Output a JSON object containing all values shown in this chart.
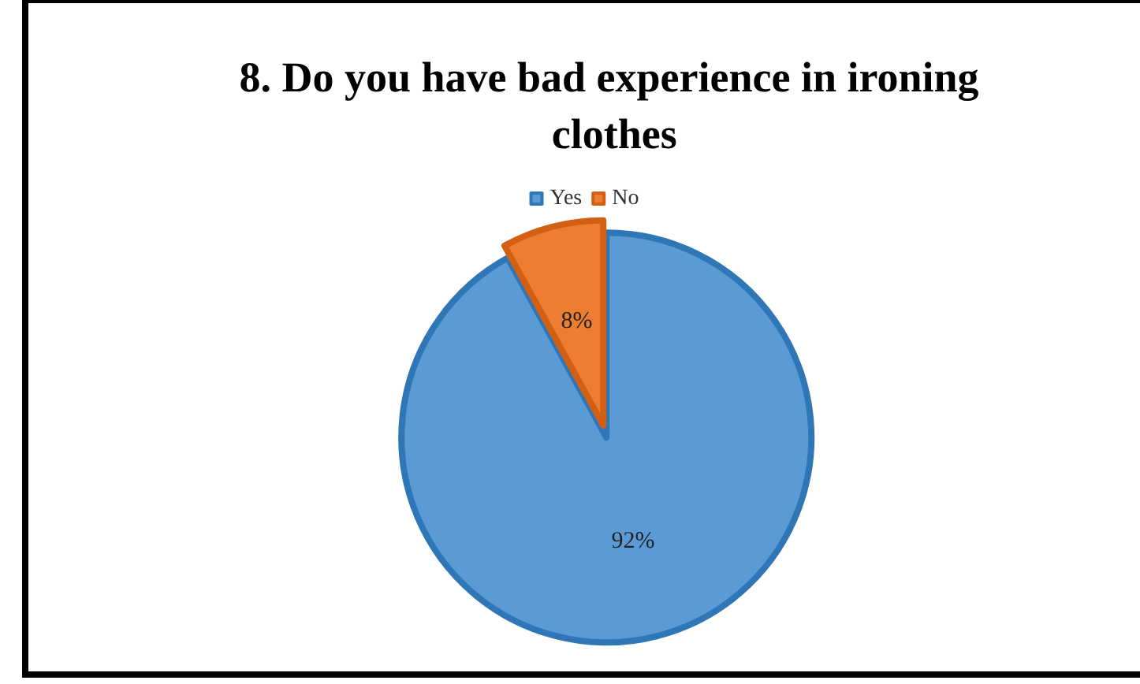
{
  "chart_data": {
    "type": "pie",
    "title": "8. Do you have bad experience in ironing clothes",
    "categories": [
      "Yes",
      "No"
    ],
    "values": [
      92,
      8
    ],
    "colors": [
      "#5b9bd5",
      "#ed7d31"
    ],
    "value_labels": [
      "92%",
      "8%"
    ],
    "legend": "top"
  }
}
